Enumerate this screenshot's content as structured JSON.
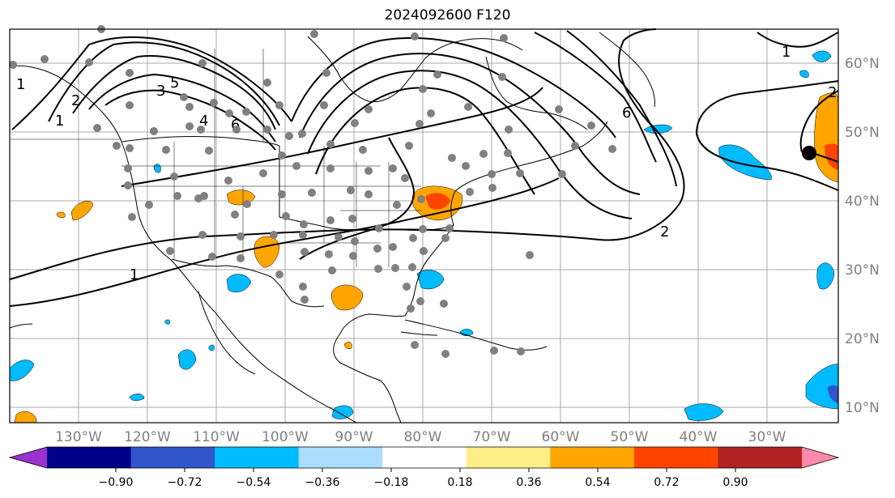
{
  "title": "2024092600 F120",
  "map": {
    "lon_labels": [
      "130°W",
      "120°W",
      "110°W",
      "100°W",
      "90°W",
      "80°W",
      "70°W",
      "60°W",
      "50°W",
      "40°W",
      "30°W"
    ],
    "lat_labels": [
      "60°N",
      "50°N",
      "40°N",
      "30°N",
      "20°N",
      "10°N"
    ],
    "contour_labels": [
      "1",
      "1",
      "2",
      "2",
      "3",
      "4",
      "5",
      "6",
      "6",
      "1",
      "1",
      "2"
    ]
  },
  "colorbar": {
    "ticks": [
      "−0.90",
      "−0.72",
      "−0.54",
      "−0.36",
      "−0.18",
      "0.18",
      "0.36",
      "0.54",
      "0.72",
      "0.90"
    ],
    "colors": [
      "#9933cc",
      "#000088",
      "#3355cc",
      "#00bbff",
      "#aaddff",
      "#ffffff",
      "#ffee88",
      "#ffa500",
      "#ff4400",
      "#b22222",
      "#ff88aa"
    ]
  }
}
